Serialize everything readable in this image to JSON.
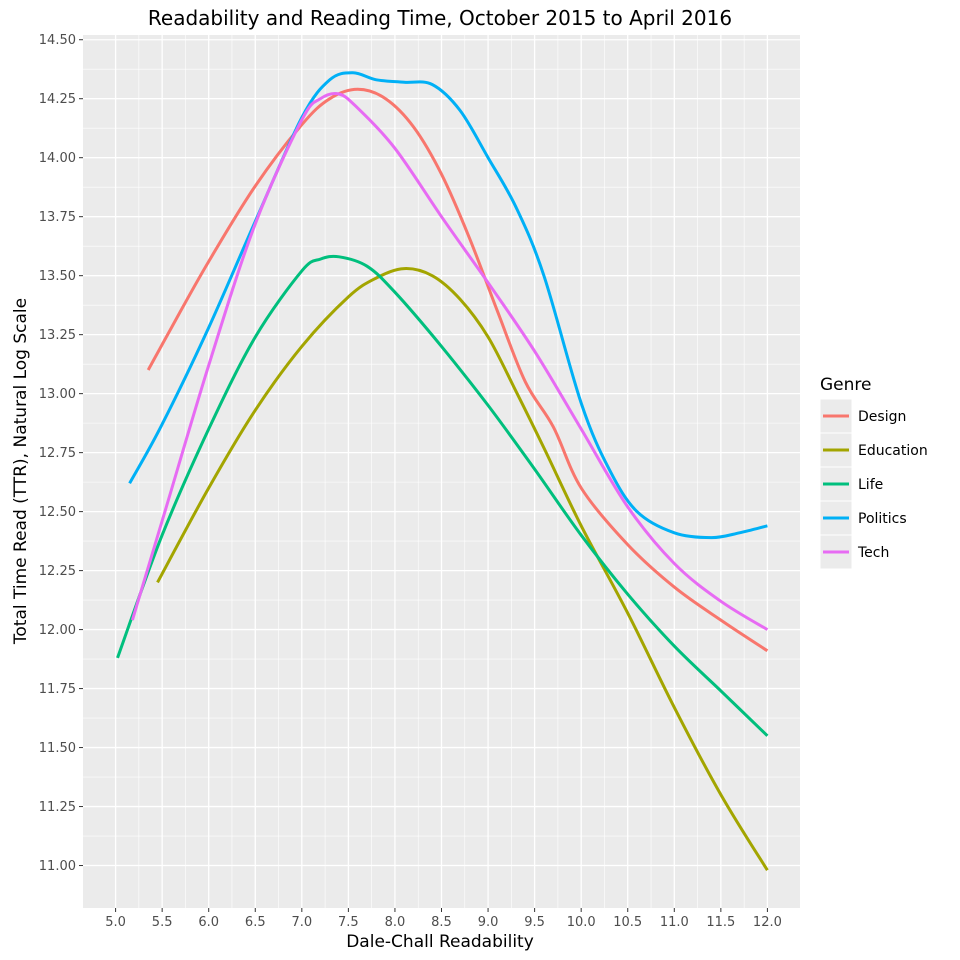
{
  "chart_data": {
    "type": "line",
    "title": "Readability and Reading Time, October 2015 to April 2016",
    "xlabel": "Dale-Chall Readability",
    "ylabel": "Total Time Read (TTR), Natural Log Scale",
    "xlim": [
      4.65,
      12.35
    ],
    "ylim": [
      10.82,
      14.52
    ],
    "xticks": [
      5.0,
      5.5,
      6.0,
      6.5,
      7.0,
      7.5,
      8.0,
      8.5,
      9.0,
      9.5,
      10.0,
      10.5,
      11.0,
      11.5,
      12.0
    ],
    "xtick_labels": [
      "5.0",
      "5.5",
      "6.0",
      "6.5",
      "7.0",
      "7.5",
      "8.0",
      "8.5",
      "9.0",
      "9.5",
      "10.0",
      "10.5",
      "11.0",
      "11.5",
      "12.0"
    ],
    "yticks": [
      11.0,
      11.25,
      11.5,
      11.75,
      12.0,
      12.25,
      12.5,
      12.75,
      13.0,
      13.25,
      13.5,
      13.75,
      14.0,
      14.25,
      14.5
    ],
    "ytick_labels": [
      "11.00",
      "11.25",
      "11.50",
      "11.75",
      "12.00",
      "12.25",
      "12.50",
      "12.75",
      "13.00",
      "13.25",
      "13.50",
      "13.75",
      "14.00",
      "14.25",
      "14.50"
    ],
    "grid": true,
    "legend": {
      "title": "Genre",
      "position": "right"
    },
    "series": [
      {
        "name": "Design",
        "color": "#F8766D",
        "x": [
          5.35,
          5.6,
          6.0,
          6.5,
          7.0,
          7.3,
          7.6,
          7.9,
          8.2,
          8.5,
          8.8,
          9.1,
          9.4,
          9.7,
          10.0,
          10.5,
          11.0,
          11.5,
          12.0
        ],
        "y": [
          13.1,
          13.28,
          13.56,
          13.88,
          14.14,
          14.25,
          14.29,
          14.25,
          14.13,
          13.93,
          13.66,
          13.35,
          13.05,
          12.86,
          12.6,
          12.36,
          12.18,
          12.04,
          11.91
        ]
      },
      {
        "name": "Education",
        "color": "#A3A500",
        "x": [
          5.45,
          6.0,
          6.5,
          7.0,
          7.5,
          7.8,
          8.1,
          8.4,
          8.7,
          9.0,
          9.3,
          9.6,
          10.0,
          10.5,
          11.0,
          11.5,
          12.0
        ],
        "y": [
          12.2,
          12.6,
          12.93,
          13.2,
          13.41,
          13.49,
          13.53,
          13.5,
          13.4,
          13.24,
          13.01,
          12.77,
          12.44,
          12.07,
          11.67,
          11.3,
          10.98
        ]
      },
      {
        "name": "Life",
        "color": "#00BF7D",
        "x": [
          5.02,
          5.5,
          6.0,
          6.5,
          7.0,
          7.2,
          7.4,
          7.7,
          8.0,
          8.5,
          9.0,
          9.5,
          10.0,
          10.5,
          11.0,
          11.5,
          12.0
        ],
        "y": [
          11.88,
          12.4,
          12.85,
          13.24,
          13.52,
          13.57,
          13.58,
          13.54,
          13.43,
          13.2,
          12.95,
          12.68,
          12.4,
          12.15,
          11.93,
          11.74,
          11.55
        ]
      },
      {
        "name": "Politics",
        "color": "#00B0F6",
        "x": [
          5.15,
          5.5,
          6.0,
          6.5,
          7.0,
          7.3,
          7.55,
          7.8,
          8.1,
          8.4,
          8.7,
          9.0,
          9.3,
          9.6,
          10.0,
          10.3,
          10.6,
          11.0,
          11.4,
          11.7,
          12.0
        ],
        "y": [
          12.62,
          12.87,
          13.28,
          13.73,
          14.17,
          14.33,
          14.36,
          14.33,
          14.32,
          14.31,
          14.2,
          14.0,
          13.79,
          13.5,
          12.96,
          12.68,
          12.5,
          12.41,
          12.39,
          12.41,
          12.44
        ]
      },
      {
        "name": "Tech",
        "color": "#E76BF3",
        "x": [
          5.18,
          5.5,
          6.0,
          6.5,
          7.0,
          7.2,
          7.4,
          7.6,
          8.0,
          8.5,
          9.0,
          9.5,
          10.0,
          10.5,
          11.0,
          11.5,
          12.0
        ],
        "y": [
          12.04,
          12.46,
          13.12,
          13.72,
          14.16,
          14.25,
          14.27,
          14.21,
          14.04,
          13.75,
          13.47,
          13.18,
          12.85,
          12.52,
          12.28,
          12.12,
          12.0
        ]
      }
    ]
  }
}
